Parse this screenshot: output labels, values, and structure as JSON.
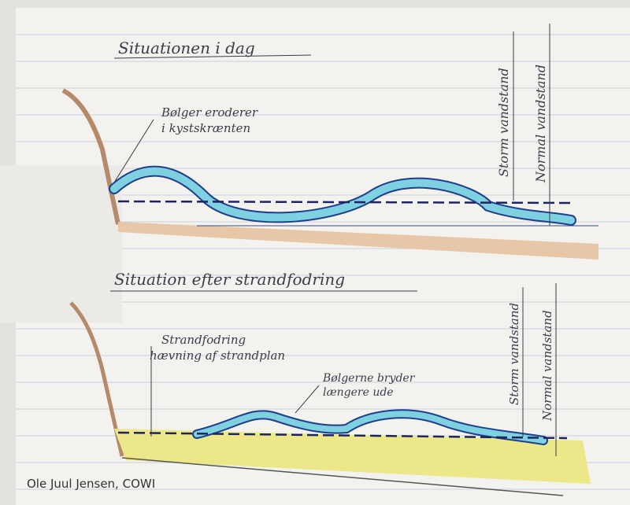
{
  "top": {
    "title": "Situationen i dag",
    "note": [
      "Bølger eroderer",
      "i kystskrænten"
    ],
    "storm": "Storm vandstand",
    "normal": "Normal vandstand"
  },
  "bottom": {
    "title": "Situation efter strandfodring",
    "note1": [
      "Strandfodring",
      "hævning af strandplan"
    ],
    "note2": [
      "Bølgerne bryder",
      "længere ude"
    ],
    "storm": "Storm vandstand",
    "normal": "Normal vandstand"
  },
  "credit": "Ole Juul Jensen, COWI"
}
